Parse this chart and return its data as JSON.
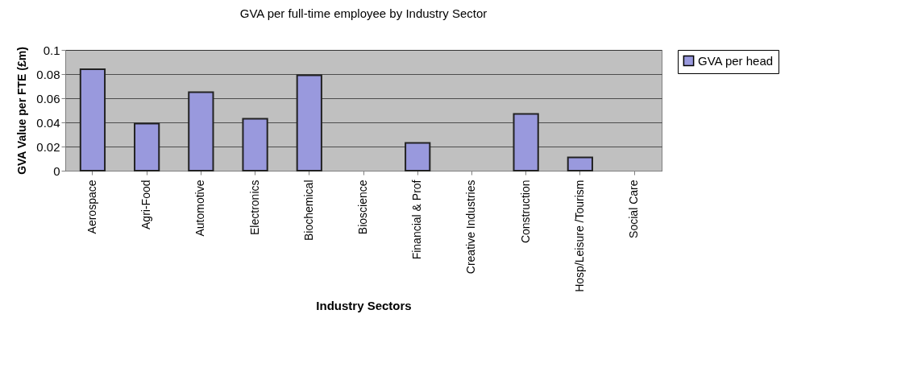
{
  "chart_data": {
    "type": "bar",
    "title": "GVA per full-time employee by Industry Sector",
    "xlabel": "Industry Sectors",
    "ylabel": "GVA Value per FTE (£m)",
    "categories": [
      "Aerospace",
      "Agri-Food",
      "Automotive",
      "Electronics",
      "Biochemical",
      "Bioscience",
      "Financial & Prof",
      "Creative Industries",
      "Construction",
      "Hosp/Leisure /Tourism",
      "Social Care"
    ],
    "series": [
      {
        "name": "GVA per head",
        "color": "#9999dd",
        "values": [
          0.084,
          0.039,
          0.065,
          0.043,
          0.079,
          null,
          0.023,
          null,
          0.047,
          0.011,
          null
        ]
      }
    ],
    "ylim": [
      0,
      0.1
    ],
    "yticks": [
      0,
      0.02,
      0.04,
      0.06,
      0.08,
      0.1
    ],
    "grid": "y",
    "legend": "right"
  }
}
